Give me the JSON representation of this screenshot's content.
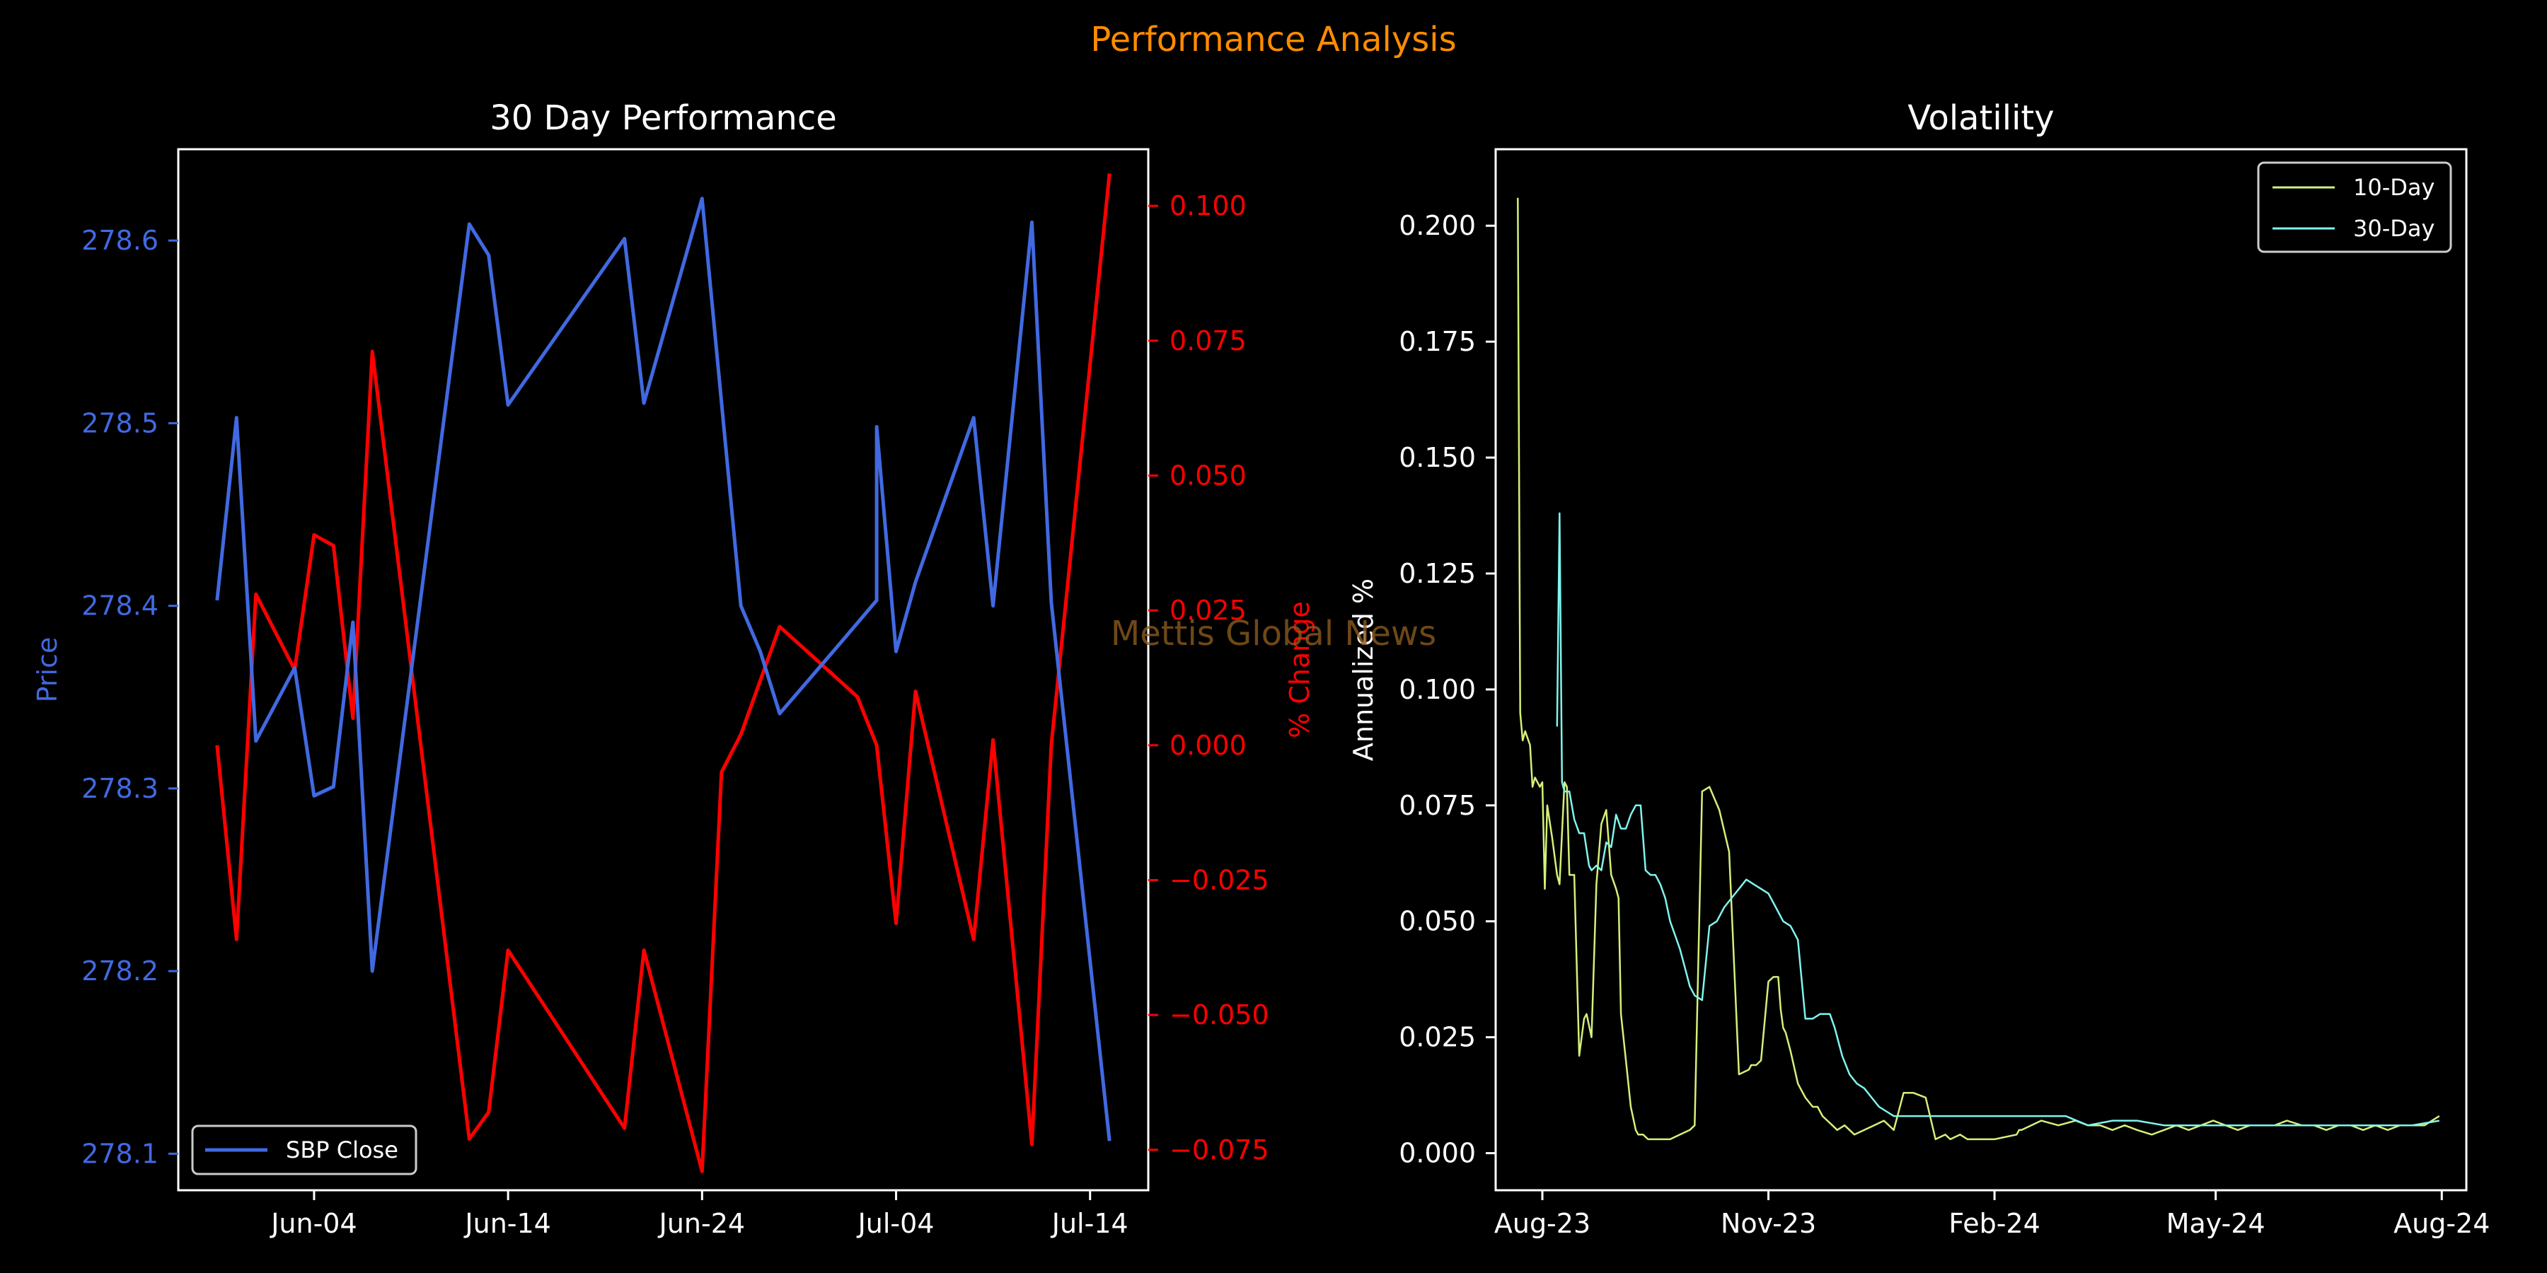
{
  "figure": {
    "suptitle": "Performance Analysis",
    "watermark": "Mettis Global News",
    "background": "#000000"
  },
  "chart_data": [
    {
      "type": "line",
      "title": "30 Day Performance",
      "ylabel": "Price",
      "y2label": "% Change",
      "x_ticks": [
        "Jun-04",
        "Jun-14",
        "Jun-24",
        "Jul-04",
        "Jul-14"
      ],
      "xlim": [
        "2024-05-28",
        "2024-07-17"
      ],
      "ylim": [
        278.08,
        278.65
      ],
      "y_ticks": [
        278.1,
        278.2,
        278.3,
        278.4,
        278.5,
        278.6
      ],
      "y2lim": [
        -0.0825,
        0.1105
      ],
      "y2_ticks": [
        "0.100",
        "0.075",
        "0.050",
        "0.025",
        "0.000",
        "−0.025",
        "−0.050",
        "−0.075"
      ],
      "legend": {
        "position": "lower-left",
        "entries": [
          "SBP Close"
        ]
      },
      "colors": {
        "price": "#4169e1",
        "pct": "#ff0000"
      },
      "series": [
        {
          "name": "SBP Close",
          "axis": "left",
          "x": [
            "2024-05-30",
            "2024-05-31",
            "2024-06-01",
            "2024-06-03",
            "2024-06-04",
            "2024-06-05",
            "2024-06-06",
            "2024-06-07",
            "2024-06-12",
            "2024-06-13",
            "2024-06-14",
            "2024-06-20",
            "2024-06-21",
            "2024-06-24",
            "2024-06-26",
            "2024-06-27",
            "2024-06-28",
            "2024-07-01",
            "2024-07-03",
            "2024-07-03",
            "2024-07-04",
            "2024-07-05",
            "2024-07-08",
            "2024-07-09",
            "2024-07-11",
            "2024-07-12",
            "2024-07-15"
          ],
          "values": [
            278.403,
            278.503,
            278.326,
            278.366,
            278.296,
            278.301,
            278.391,
            278.2,
            278.609,
            278.592,
            278.51,
            278.601,
            278.511,
            278.623,
            278.4,
            278.375,
            278.341,
            278.378,
            278.403,
            278.498,
            278.375,
            278.413,
            278.503,
            278.4,
            278.61,
            278.402,
            278.107
          ]
        },
        {
          "name": "% Change",
          "axis": "right",
          "x": [
            "2024-05-30",
            "2024-05-31",
            "2024-06-01",
            "2024-06-03",
            "2024-06-04",
            "2024-06-05",
            "2024-06-06",
            "2024-06-07",
            "2024-06-12",
            "2024-06-13",
            "2024-06-14",
            "2024-06-20",
            "2024-06-21",
            "2024-06-24",
            "2024-06-25",
            "2024-06-26",
            "2024-06-28",
            "2024-07-02",
            "2024-07-03",
            "2024-07-04",
            "2024-07-05",
            "2024-07-08",
            "2024-07-09",
            "2024-07-11",
            "2024-07-12",
            "2024-07-15"
          ],
          "values": [
            0.0,
            -0.036,
            0.028,
            0.014,
            0.039,
            0.037,
            0.005,
            0.073,
            -0.073,
            -0.068,
            -0.038,
            -0.071,
            -0.038,
            -0.079,
            -0.005,
            0.002,
            0.022,
            0.009,
            0.0,
            -0.033,
            0.01,
            -0.036,
            0.001,
            -0.074,
            0.0,
            0.106
          ]
        }
      ]
    },
    {
      "type": "line",
      "title": "Volatility",
      "ylabel": "Annualized %",
      "x_ticks": [
        "Aug-23",
        "Nov-23",
        "Feb-24",
        "May-24",
        "Aug-24"
      ],
      "xlim": [
        "2023-07-13",
        "2024-08-11"
      ],
      "ylim": [
        -0.008,
        0.2165
      ],
      "y_ticks": [
        "0.000",
        "0.025",
        "0.050",
        "0.075",
        "0.100",
        "0.125",
        "0.150",
        "0.175",
        "0.200"
      ],
      "legend": {
        "position": "upper-right",
        "entries": [
          "10-Day",
          "30-Day"
        ]
      },
      "colors": {
        "10-Day": "#d4f07a",
        "30-Day": "#7ff5ee"
      },
      "series": [
        {
          "name": "10-Day",
          "x": [
            "2023-07-22",
            "2023-07-23",
            "2023-07-24",
            "2023-07-25",
            "2023-07-27",
            "2023-07-28",
            "2023-07-29",
            "2023-07-31",
            "2023-08-01",
            "2023-08-02",
            "2023-08-03",
            "2023-08-05",
            "2023-08-07",
            "2023-08-08",
            "2023-08-09",
            "2023-08-10",
            "2023-08-11",
            "2023-08-12",
            "2023-08-14",
            "2023-08-16",
            "2023-08-18",
            "2023-08-19",
            "2023-08-21",
            "2023-08-23",
            "2023-08-25",
            "2023-08-27",
            "2023-08-29",
            "2023-08-31",
            "2023-09-01",
            "2023-09-02",
            "2023-09-04",
            "2023-09-06",
            "2023-09-08",
            "2023-09-09",
            "2023-09-11",
            "2023-09-13",
            "2023-09-15",
            "2023-09-18",
            "2023-09-22",
            "2023-09-26",
            "2023-09-30",
            "2023-10-02",
            "2023-10-05",
            "2023-10-08",
            "2023-10-12",
            "2023-10-16",
            "2023-10-20",
            "2023-10-24",
            "2023-10-25",
            "2023-10-26",
            "2023-10-27",
            "2023-10-29",
            "2023-11-01",
            "2023-11-03",
            "2023-11-05",
            "2023-11-06",
            "2023-11-07",
            "2023-11-08",
            "2023-11-10",
            "2023-11-13",
            "2023-11-16",
            "2023-11-19",
            "2023-11-21",
            "2023-11-23",
            "2023-11-25",
            "2023-11-27",
            "2023-11-29",
            "2023-12-02",
            "2023-12-06",
            "2023-12-10",
            "2023-12-14",
            "2023-12-18",
            "2023-12-22",
            "2023-12-26",
            "2023-12-30",
            "2024-01-04",
            "2024-01-08",
            "2024-01-12",
            "2024-01-14",
            "2024-01-18",
            "2024-01-21",
            "2024-01-22",
            "2024-02-01",
            "2024-02-10",
            "2024-02-11",
            "2024-02-12",
            "2024-02-20",
            "2024-02-27",
            "2024-03-05",
            "2024-03-10",
            "2024-03-15",
            "2024-03-20",
            "2024-03-25",
            "2024-03-30",
            "2024-04-05",
            "2024-04-10",
            "2024-04-15",
            "2024-04-20",
            "2024-04-25",
            "2024-04-30",
            "2024-05-05",
            "2024-05-10",
            "2024-05-15",
            "2024-05-20",
            "2024-05-25",
            "2024-05-30",
            "2024-06-05",
            "2024-06-10",
            "2024-06-15",
            "2024-06-20",
            "2024-06-25",
            "2024-06-30",
            "2024-07-05",
            "2024-07-10",
            "2024-07-15",
            "2024-07-20",
            "2024-07-25",
            "2024-07-28",
            "2024-07-31"
          ],
          "values": [
            0.206,
            0.095,
            0.089,
            0.091,
            0.088,
            0.079,
            0.081,
            0.079,
            0.08,
            0.057,
            0.075,
            0.068,
            0.06,
            0.058,
            0.069,
            0.08,
            0.079,
            0.06,
            0.06,
            0.021,
            0.029,
            0.03,
            0.025,
            0.058,
            0.071,
            0.074,
            0.06,
            0.057,
            0.055,
            0.03,
            0.02,
            0.01,
            0.005,
            0.004,
            0.004,
            0.003,
            0.003,
            0.003,
            0.003,
            0.004,
            0.005,
            0.006,
            0.078,
            0.079,
            0.074,
            0.065,
            0.017,
            0.018,
            0.019,
            0.019,
            0.019,
            0.02,
            0.037,
            0.038,
            0.038,
            0.031,
            0.027,
            0.026,
            0.022,
            0.015,
            0.012,
            0.01,
            0.01,
            0.008,
            0.007,
            0.006,
            0.005,
            0.006,
            0.004,
            0.005,
            0.006,
            0.007,
            0.005,
            0.013,
            0.013,
            0.012,
            0.003,
            0.004,
            0.003,
            0.004,
            0.003,
            0.003,
            0.003,
            0.004,
            0.005,
            0.005,
            0.007,
            0.006,
            0.007,
            0.006,
            0.006,
            0.005,
            0.006,
            0.005,
            0.004,
            0.005,
            0.006,
            0.005,
            0.006,
            0.007,
            0.006,
            0.005,
            0.006,
            0.006,
            0.006,
            0.007,
            0.006,
            0.006,
            0.005,
            0.006,
            0.006,
            0.005,
            0.006,
            0.005,
            0.006,
            0.006,
            0.006,
            0.007,
            0.008
          ]
        },
        {
          "name": "30-Day",
          "x": [
            "2023-08-07",
            "2023-08-08",
            "2023-08-09",
            "2023-08-10",
            "2023-08-12",
            "2023-08-14",
            "2023-08-16",
            "2023-08-18",
            "2023-08-20",
            "2023-08-21",
            "2023-08-23",
            "2023-08-25",
            "2023-08-27",
            "2023-08-29",
            "2023-08-31",
            "2023-09-02",
            "2023-09-04",
            "2023-09-06",
            "2023-09-08",
            "2023-09-10",
            "2023-09-12",
            "2023-09-14",
            "2023-09-16",
            "2023-09-18",
            "2023-09-20",
            "2023-09-22",
            "2023-09-24",
            "2023-09-26",
            "2023-09-28",
            "2023-09-30",
            "2023-10-02",
            "2023-10-05",
            "2023-10-08",
            "2023-10-11",
            "2023-10-14",
            "2023-10-17",
            "2023-10-20",
            "2023-10-23",
            "2023-10-26",
            "2023-10-29",
            "2023-11-01",
            "2023-11-04",
            "2023-11-07",
            "2023-11-10",
            "2023-11-13",
            "2023-11-16",
            "2023-11-19",
            "2023-11-22",
            "2023-11-24",
            "2023-11-26",
            "2023-11-28",
            "2023-12-01",
            "2023-12-04",
            "2023-12-07",
            "2023-12-10",
            "2023-12-13",
            "2023-12-16",
            "2023-12-19",
            "2023-12-22",
            "2023-12-26",
            "2023-12-30",
            "2024-01-04",
            "2024-01-10",
            "2024-01-20",
            "2024-01-30",
            "2024-02-10",
            "2024-02-20",
            "2024-03-01",
            "2024-03-10",
            "2024-03-20",
            "2024-03-30",
            "2024-04-10",
            "2024-04-20",
            "2024-04-30",
            "2024-05-10",
            "2024-05-20",
            "2024-05-30",
            "2024-06-10",
            "2024-06-20",
            "2024-06-30",
            "2024-07-10",
            "2024-07-20",
            "2024-07-31"
          ],
          "values": [
            0.092,
            0.138,
            0.08,
            0.078,
            0.078,
            0.072,
            0.069,
            0.069,
            0.062,
            0.061,
            0.062,
            0.061,
            0.067,
            0.066,
            0.073,
            0.07,
            0.07,
            0.073,
            0.075,
            0.075,
            0.061,
            0.06,
            0.06,
            0.058,
            0.055,
            0.05,
            0.047,
            0.044,
            0.04,
            0.036,
            0.034,
            0.033,
            0.049,
            0.05,
            0.053,
            0.055,
            0.057,
            0.059,
            0.058,
            0.057,
            0.056,
            0.053,
            0.05,
            0.049,
            0.046,
            0.029,
            0.029,
            0.03,
            0.03,
            0.03,
            0.027,
            0.021,
            0.017,
            0.015,
            0.014,
            0.012,
            0.01,
            0.009,
            0.008,
            0.008,
            0.008,
            0.008,
            0.008,
            0.008,
            0.008,
            0.008,
            0.008,
            0.008,
            0.006,
            0.007,
            0.007,
            0.006,
            0.006,
            0.006,
            0.006,
            0.006,
            0.006,
            0.006,
            0.006,
            0.006,
            0.006,
            0.006,
            0.007
          ]
        }
      ]
    }
  ]
}
